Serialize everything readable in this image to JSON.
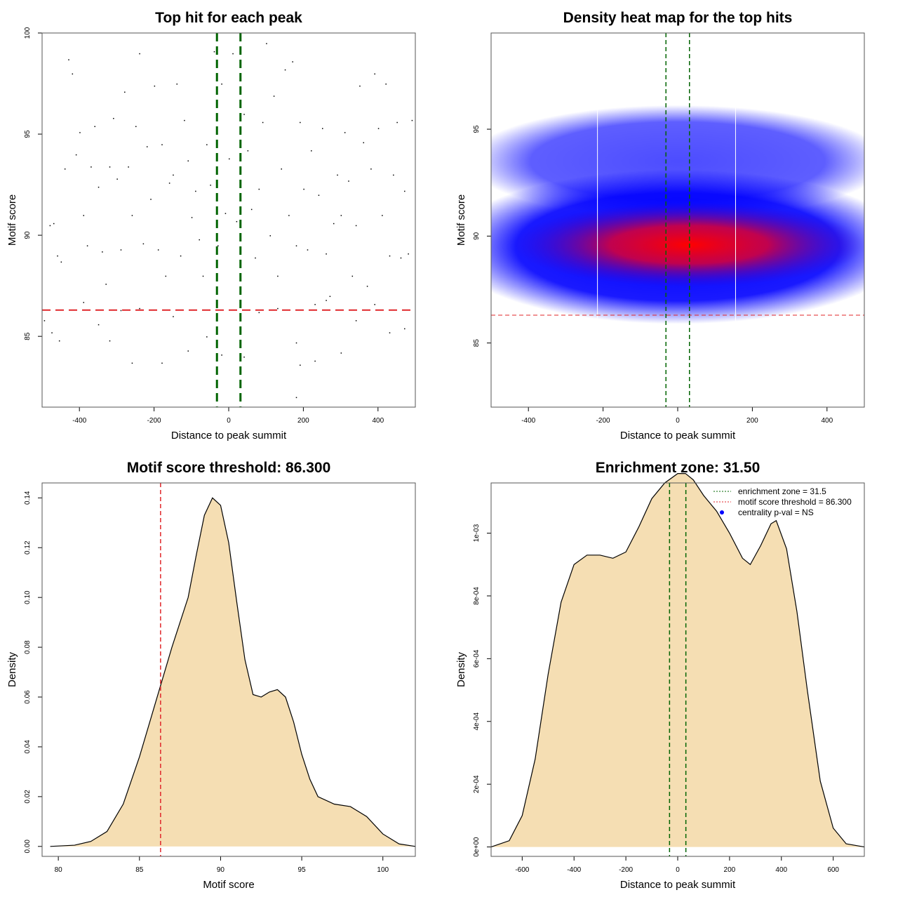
{
  "chart_data": [
    {
      "type": "scatter",
      "title": "Top hit for each peak",
      "xlabel": "Distance to peak summit",
      "ylabel": "Motif score",
      "xlim": [
        -500,
        500
      ],
      "ylim": [
        81.5,
        100
      ],
      "xticks": [
        -400,
        -200,
        0,
        200,
        400
      ],
      "yticks": [
        85,
        90,
        95,
        100
      ],
      "vlines": [
        -31.5,
        31.5
      ],
      "hline": 86.3,
      "points": [
        [
          -480,
          90.5
        ],
        [
          -470,
          90.6
        ],
        [
          -460,
          89
        ],
        [
          -450,
          88.7
        ],
        [
          -440,
          93.3
        ],
        [
          -430,
          98.7
        ],
        [
          -420,
          98
        ],
        [
          -410,
          94
        ],
        [
          -400,
          95.1
        ],
        [
          -390,
          91
        ],
        [
          -380,
          89.5
        ],
        [
          -370,
          93.4
        ],
        [
          -360,
          95.4
        ],
        [
          -350,
          92.4
        ],
        [
          -340,
          89.2
        ],
        [
          -330,
          87.6
        ],
        [
          -320,
          93.4
        ],
        [
          -310,
          95.8
        ],
        [
          -300,
          92.8
        ],
        [
          -290,
          89.3
        ],
        [
          -280,
          97.1
        ],
        [
          -270,
          93.4
        ],
        [
          -260,
          91
        ],
        [
          -250,
          95.4
        ],
        [
          -240,
          99
        ],
        [
          -230,
          89.6
        ],
        [
          -220,
          94.4
        ],
        [
          -210,
          91.8
        ],
        [
          -200,
          97.4
        ],
        [
          -190,
          89.3
        ],
        [
          -180,
          94.5
        ],
        [
          -170,
          88
        ],
        [
          -160,
          92.6
        ],
        [
          -150,
          93
        ],
        [
          -140,
          97.5
        ],
        [
          -130,
          89
        ],
        [
          -120,
          95.7
        ],
        [
          -110,
          93.7
        ],
        [
          -100,
          90.9
        ],
        [
          -90,
          92.2
        ],
        [
          -80,
          89.8
        ],
        [
          -70,
          88
        ],
        [
          -60,
          94.5
        ],
        [
          -50,
          92.5
        ],
        [
          -40,
          99.1
        ],
        [
          -30,
          89.5
        ],
        [
          -20,
          97.5
        ],
        [
          -10,
          91.1
        ],
        [
          0,
          93.8
        ],
        [
          10,
          99
        ],
        [
          20,
          90.7
        ],
        [
          30,
          93.3
        ],
        [
          40,
          96
        ],
        [
          50,
          94.2
        ],
        [
          60,
          91.3
        ],
        [
          70,
          88.9
        ],
        [
          80,
          92.3
        ],
        [
          90,
          95.6
        ],
        [
          100,
          99.5
        ],
        [
          110,
          90
        ],
        [
          120,
          96.9
        ],
        [
          130,
          88
        ],
        [
          140,
          93.3
        ],
        [
          150,
          98.2
        ],
        [
          160,
          91
        ],
        [
          170,
          98.6
        ],
        [
          180,
          89.5
        ],
        [
          190,
          95.6
        ],
        [
          200,
          92.3
        ],
        [
          210,
          89.3
        ],
        [
          220,
          94.2
        ],
        [
          230,
          86.6
        ],
        [
          240,
          92
        ],
        [
          250,
          95.3
        ],
        [
          260,
          89.1
        ],
        [
          270,
          87
        ],
        [
          280,
          90.6
        ],
        [
          290,
          93
        ],
        [
          300,
          91
        ],
        [
          310,
          95.1
        ],
        [
          320,
          92.7
        ],
        [
          330,
          88
        ],
        [
          340,
          90.5
        ],
        [
          350,
          97.4
        ],
        [
          360,
          94.6
        ],
        [
          370,
          87.5
        ],
        [
          380,
          93.3
        ],
        [
          390,
          98
        ],
        [
          400,
          95.3
        ],
        [
          410,
          91
        ],
        [
          420,
          97.5
        ],
        [
          430,
          89
        ],
        [
          440,
          93
        ],
        [
          450,
          95.6
        ],
        [
          460,
          88.9
        ],
        [
          470,
          92.2
        ],
        [
          480,
          89.1
        ],
        [
          490,
          95.7
        ],
        [
          -495,
          85.8
        ],
        [
          -475,
          85.2
        ],
        [
          -455,
          84.8
        ],
        [
          -390,
          86.7
        ],
        [
          -350,
          85.6
        ],
        [
          -320,
          84.8
        ],
        [
          -290,
          86.3
        ],
        [
          -260,
          83.7
        ],
        [
          -240,
          86.4
        ],
        [
          -180,
          83.7
        ],
        [
          -150,
          86
        ],
        [
          -110,
          84.3
        ],
        [
          -60,
          85
        ],
        [
          -20,
          84.1
        ],
        [
          40,
          84
        ],
        [
          80,
          86.2
        ],
        [
          130,
          86.4
        ],
        [
          180,
          84.7
        ],
        [
          190,
          83.6
        ],
        [
          230,
          83.8
        ],
        [
          260,
          86.8
        ],
        [
          300,
          84.2
        ],
        [
          340,
          85.8
        ],
        [
          390,
          86.6
        ],
        [
          430,
          85.2
        ],
        [
          470,
          85.4
        ],
        [
          180,
          82
        ]
      ]
    },
    {
      "type": "heatmap",
      "title": "Density heat map for the top hits",
      "xlabel": "Distance to peak summit",
      "ylabel": "Motif score",
      "xlim": [
        -500,
        500
      ],
      "ylim": [
        82,
        99.5
      ],
      "xticks": [
        -400,
        -200,
        0,
        200,
        400
      ],
      "yticks": [
        85,
        90,
        95
      ],
      "vlines": [
        -31.5,
        31.5
      ],
      "white_vlines": [
        -215,
        155
      ],
      "hline": 86.3,
      "peak": [
        30,
        89.6
      ]
    },
    {
      "type": "area",
      "title": "Motif score threshold: 86.300",
      "xlabel": "Motif score",
      "ylabel": "Density",
      "xlim": [
        79,
        102
      ],
      "ylim": [
        -0.004,
        0.146
      ],
      "xticks": [
        80,
        85,
        90,
        95,
        100
      ],
      "yticks": [
        0,
        0.02,
        0.04,
        0.06,
        0.08,
        0.1,
        0.12,
        0.14
      ],
      "vline": 86.3,
      "x": [
        79.5,
        81,
        82,
        83,
        84,
        85,
        86,
        87,
        88,
        88.5,
        89,
        89.5,
        90,
        90.5,
        91,
        91.5,
        92,
        92.5,
        93,
        93.5,
        94,
        94.5,
        95,
        95.5,
        96,
        97,
        98,
        99,
        100,
        101,
        102
      ],
      "y": [
        0,
        0.0005,
        0.002,
        0.006,
        0.017,
        0.036,
        0.058,
        0.08,
        0.1,
        0.117,
        0.133,
        0.14,
        0.137,
        0.122,
        0.098,
        0.075,
        0.061,
        0.06,
        0.062,
        0.063,
        0.06,
        0.05,
        0.037,
        0.027,
        0.02,
        0.017,
        0.016,
        0.012,
        0.005,
        0.001,
        0
      ]
    },
    {
      "type": "area",
      "title": "Enrichment zone: 31.50",
      "xlabel": "Distance to peak summit",
      "ylabel": "Density",
      "xlim": [
        -720,
        720
      ],
      "ylim": [
        -3e-05,
        0.00116
      ],
      "xticks": [
        -600,
        -400,
        -200,
        0,
        200,
        400,
        600
      ],
      "yticks": [
        0,
        0.0002,
        0.0004,
        0.0006,
        0.0008,
        0.001
      ],
      "ytick_labels": [
        "0e+00",
        "2e-04",
        "4e-04",
        "6e-04",
        "8e-04",
        "1e-03"
      ],
      "vlines": [
        -31.5,
        31.5
      ],
      "x": [
        -720,
        -650,
        -600,
        -550,
        -500,
        -450,
        -400,
        -350,
        -300,
        -250,
        -200,
        -150,
        -100,
        -50,
        0,
        30,
        60,
        100,
        150,
        200,
        250,
        280,
        320,
        360,
        380,
        420,
        460,
        500,
        550,
        600,
        650,
        720
      ],
      "y": [
        0,
        2e-05,
        0.0001,
        0.00028,
        0.00055,
        0.00078,
        0.0009,
        0.00093,
        0.00093,
        0.00092,
        0.00094,
        0.00102,
        0.00111,
        0.00116,
        0.00119,
        0.00119,
        0.00117,
        0.00112,
        0.00107,
        0.001,
        0.00092,
        0.0009,
        0.00096,
        0.00103,
        0.00104,
        0.00095,
        0.00075,
        0.0005,
        0.00021,
        6e-05,
        1e-05,
        0
      ],
      "legend": {
        "position": "top-right",
        "entries": [
          "enrichment zone = 31.5",
          "motif score threshold = 86.300",
          "centrality p-val = NS"
        ]
      }
    }
  ]
}
